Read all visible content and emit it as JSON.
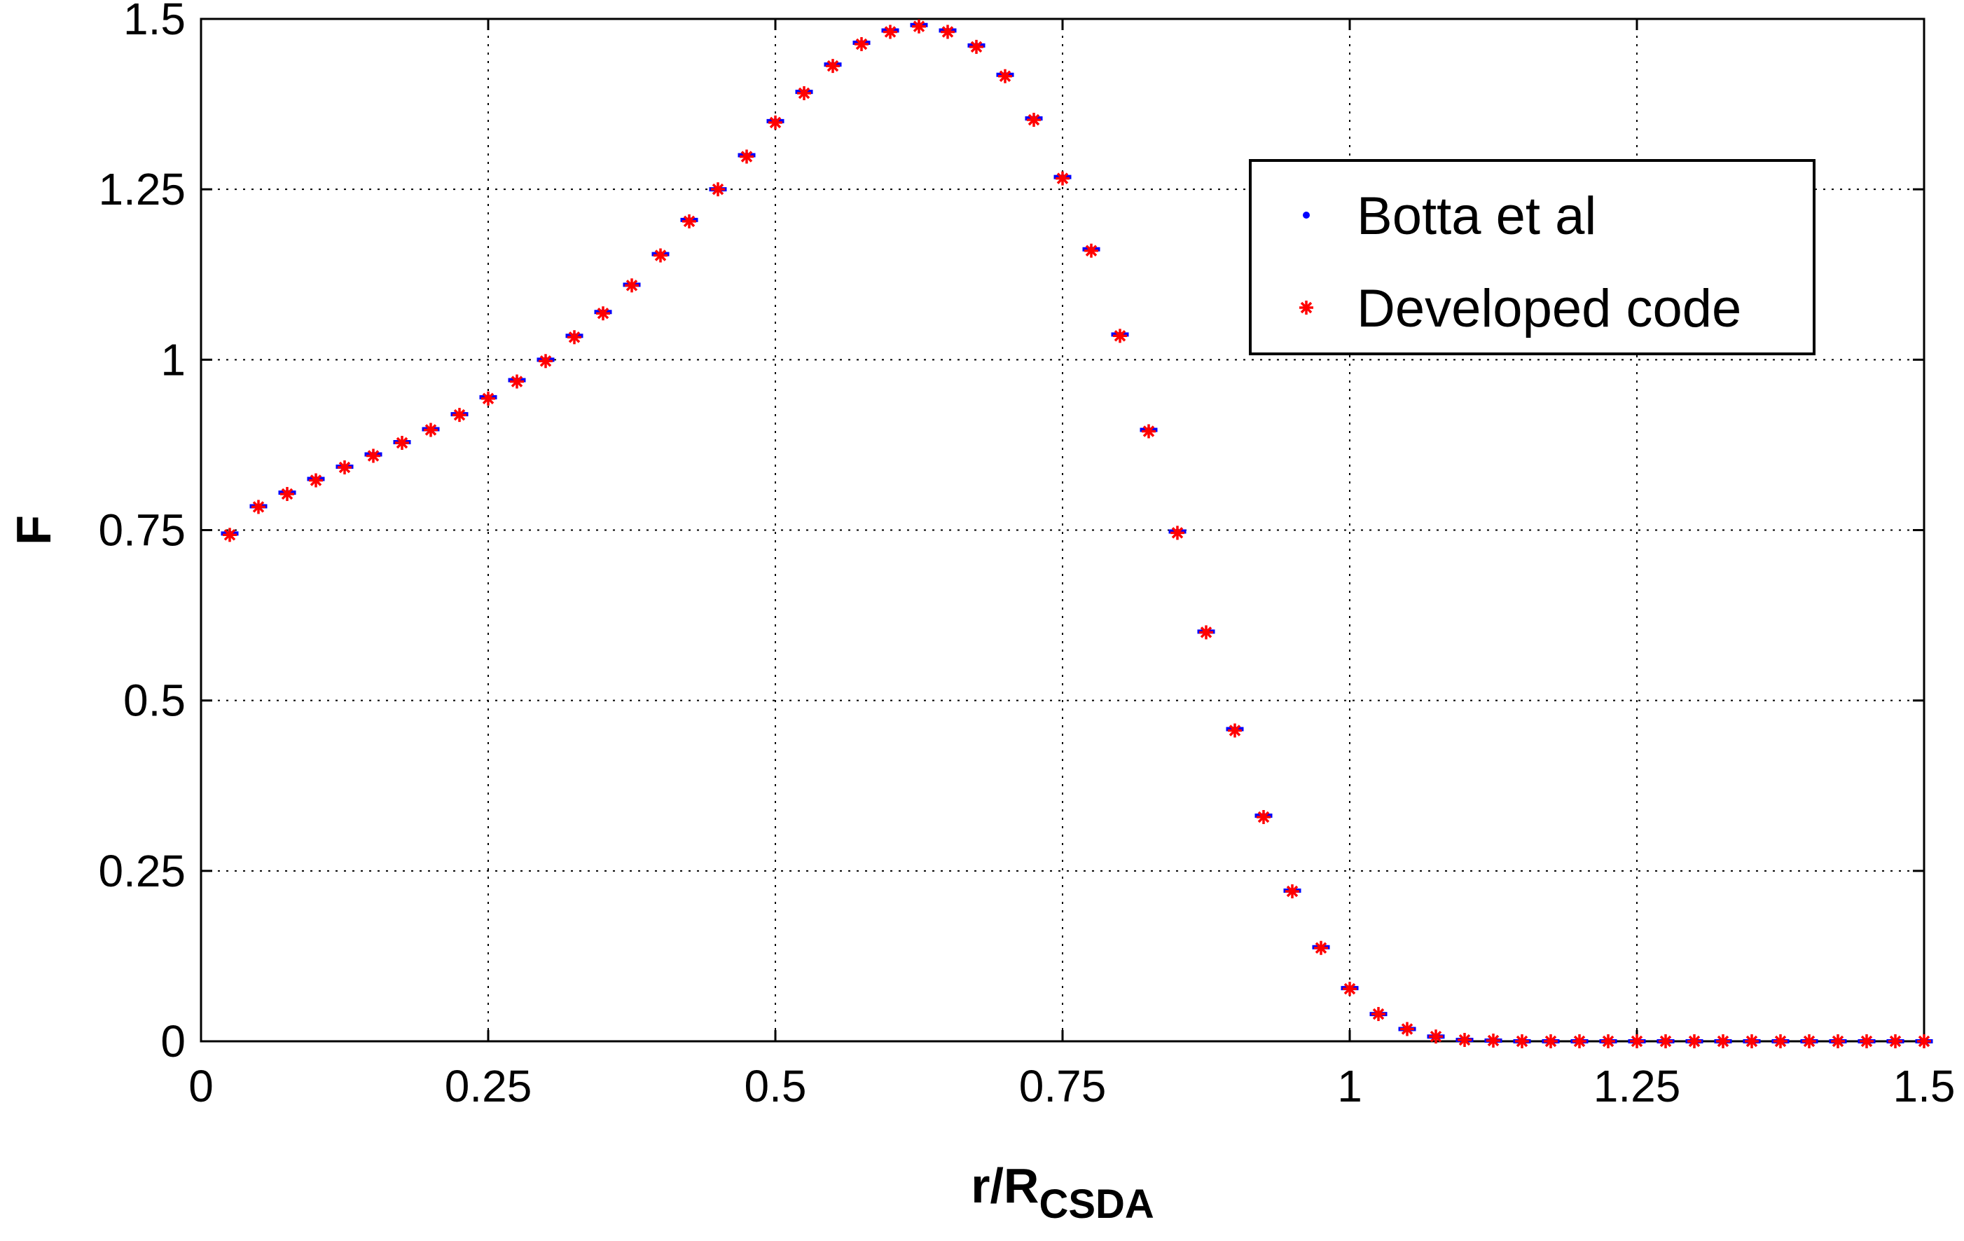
{
  "chart_data": {
    "type": "scatter",
    "xlabel": "r/R",
    "xlabel_sub": "CSDA",
    "ylabel": "F",
    "xlim": [
      0,
      1.5
    ],
    "ylim": [
      0,
      1.5
    ],
    "xticks": [
      0,
      0.25,
      0.5,
      0.75,
      1,
      1.25,
      1.5
    ],
    "yticks": [
      0,
      0.25,
      0.5,
      0.75,
      1,
      1.25,
      1.5
    ],
    "xtick_labels": [
      "0",
      "0.25",
      "0.5",
      "0.75",
      "1",
      "1.25",
      "1.5"
    ],
    "ytick_labels": [
      "0",
      "0.25",
      "0.5",
      "0.75",
      "1",
      "1.25",
      "1.5"
    ],
    "grid": true,
    "legend_position": "top-right",
    "bin_width": 0.025,
    "series": [
      {
        "name": "Botta et al",
        "color": "#0000ff",
        "marker": "point",
        "x": [
          0.025,
          0.05,
          0.075,
          0.1,
          0.125,
          0.15,
          0.175,
          0.2,
          0.225,
          0.25,
          0.275,
          0.3,
          0.325,
          0.35,
          0.375,
          0.4,
          0.425,
          0.45,
          0.475,
          0.5,
          0.525,
          0.55,
          0.575,
          0.6,
          0.625,
          0.65,
          0.675,
          0.7,
          0.725,
          0.75,
          0.775,
          0.8,
          0.825,
          0.85,
          0.875,
          0.9,
          0.925,
          0.95,
          0.975,
          1.0,
          1.025,
          1.05,
          1.075,
          1.1,
          1.125,
          1.15,
          1.175,
          1.2,
          1.225,
          1.25,
          1.275,
          1.3,
          1.325,
          1.35,
          1.375,
          1.4,
          1.425,
          1.45,
          1.475,
          1.5
        ],
        "y": [
          0.745,
          0.785,
          0.805,
          0.825,
          0.843,
          0.861,
          0.879,
          0.898,
          0.92,
          0.945,
          0.97,
          1.0,
          1.035,
          1.07,
          1.11,
          1.155,
          1.205,
          1.25,
          1.3,
          1.35,
          1.393,
          1.433,
          1.465,
          1.483,
          1.491,
          1.483,
          1.461,
          1.418,
          1.354,
          1.268,
          1.162,
          1.037,
          0.897,
          0.748,
          0.601,
          0.458,
          0.331,
          0.221,
          0.138,
          0.078,
          0.04,
          0.018,
          0.007,
          0.002,
          0.001,
          0.0,
          0.0,
          0.0,
          0.0,
          0.0,
          0.0,
          0.0,
          0.0,
          0.0,
          0.0,
          0.0,
          0.0,
          0.0,
          0.0,
          0.0
        ]
      },
      {
        "name": "Developed code",
        "color": "#ff0000",
        "marker": "asterisk",
        "x": [
          0.025,
          0.05,
          0.075,
          0.1,
          0.125,
          0.15,
          0.175,
          0.2,
          0.225,
          0.25,
          0.275,
          0.3,
          0.325,
          0.35,
          0.375,
          0.4,
          0.425,
          0.45,
          0.475,
          0.5,
          0.525,
          0.55,
          0.575,
          0.6,
          0.625,
          0.65,
          0.675,
          0.7,
          0.725,
          0.75,
          0.775,
          0.8,
          0.825,
          0.85,
          0.875,
          0.9,
          0.925,
          0.95,
          0.975,
          1.0,
          1.025,
          1.05,
          1.075,
          1.1,
          1.125,
          1.15,
          1.175,
          1.2,
          1.225,
          1.25,
          1.275,
          1.3,
          1.325,
          1.35,
          1.375,
          1.4,
          1.425,
          1.45,
          1.475,
          1.5
        ],
        "y": [
          0.743,
          0.784,
          0.803,
          0.823,
          0.842,
          0.859,
          0.878,
          0.897,
          0.919,
          0.943,
          0.968,
          0.998,
          1.033,
          1.068,
          1.109,
          1.153,
          1.203,
          1.25,
          1.298,
          1.348,
          1.391,
          1.431,
          1.463,
          1.481,
          1.489,
          1.481,
          1.459,
          1.416,
          1.352,
          1.266,
          1.16,
          1.035,
          0.895,
          0.746,
          0.6,
          0.456,
          0.329,
          0.22,
          0.137,
          0.077,
          0.04,
          0.018,
          0.007,
          0.002,
          0.001,
          0.0,
          0.0,
          0.0,
          0.0,
          0.0,
          0.0,
          0.0,
          0.0,
          0.0,
          0.0,
          0.0,
          0.0,
          0.0,
          0.0,
          0.0
        ]
      }
    ]
  }
}
